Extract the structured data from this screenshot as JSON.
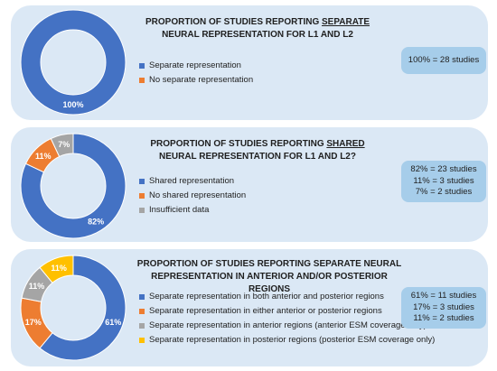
{
  "chart_data": [
    {
      "type": "pie",
      "title_prefix": "PROPORTION OF STUDIES REPORTING ",
      "title_emphasis": "SEPARATE",
      "title_suffix": " NEURAL REPRESENTATION FOR L1 AND L2",
      "slices": [
        {
          "label": "Separate representation",
          "value": 100,
          "pct_label": "100%",
          "color": "#4472c4"
        },
        {
          "label": "No separate representation",
          "value": 0,
          "pct_label": "",
          "color": "#ed7d31"
        }
      ],
      "summary": [
        "100% = 28 studies"
      ]
    },
    {
      "type": "pie",
      "title_prefix": "PROPORTION OF STUDIES REPORTING ",
      "title_emphasis": "SHARED",
      "title_suffix": " NEURAL REPRESENTATION FOR L1 AND L2?",
      "slices": [
        {
          "label": "Shared representation",
          "value": 82,
          "pct_label": "82%",
          "color": "#4472c4"
        },
        {
          "label": "No shared representation",
          "value": 11,
          "pct_label": "11%",
          "color": "#ed7d31"
        },
        {
          "label": "Insufficient data",
          "value": 7,
          "pct_label": "7%",
          "color": "#a5a5a5"
        }
      ],
      "summary": [
        "82% = 23 studies",
        "11% = 3 studies",
        "7% = 2 studies"
      ]
    },
    {
      "type": "pie",
      "title_prefix": "PROPORTION OF STUDIES REPORTING SEPARATE NEURAL REPRESENTATION IN ANTERIOR AND/OR POSTERIOR REGIONS",
      "title_emphasis": "",
      "title_suffix": "",
      "slices": [
        {
          "label": "Separate representation in both anterior and posterior regions",
          "value": 61,
          "pct_label": "61%",
          "color": "#4472c4"
        },
        {
          "label": "Separate representation in either anterior or posterior regions",
          "value": 17,
          "pct_label": "17%",
          "color": "#ed7d31"
        },
        {
          "label": "Separate representation in anterior regions (anterior ESM coverage only)",
          "value": 11,
          "pct_label": "11%",
          "color": "#a5a5a5"
        },
        {
          "label": "Separate representation in posterior regions (posterior ESM coverage only)",
          "value": 11,
          "pct_label": "11%",
          "color": "#ffc000"
        }
      ],
      "summary": [
        "61% = 11 studies",
        "17% = 3 studies",
        "11% = 2 studies"
      ]
    }
  ]
}
